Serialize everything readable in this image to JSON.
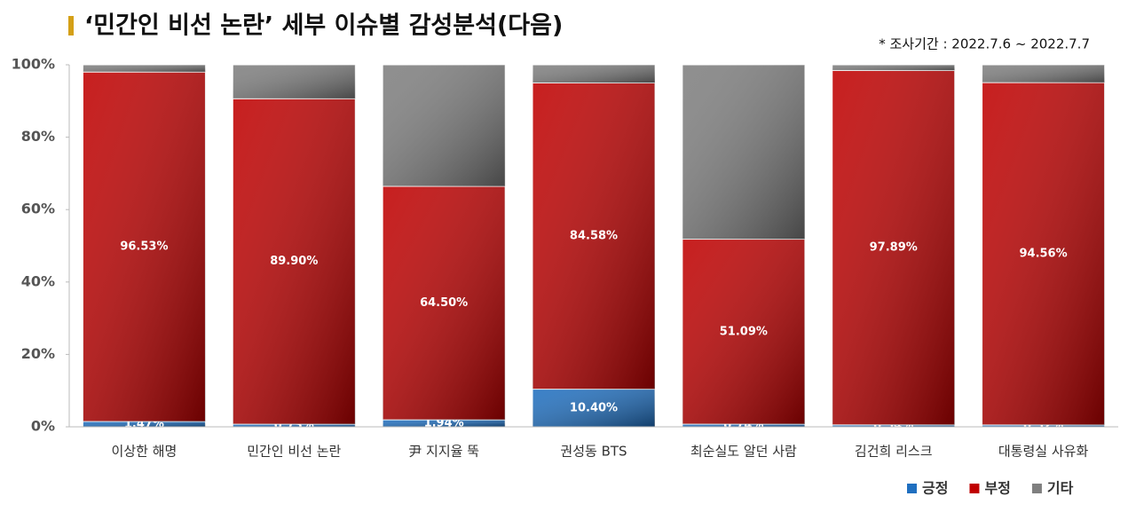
{
  "chart_data": {
    "type": "stacked_bar",
    "title": "‘민간인 비선 논란’ 세부 이슈별 감성분석(다음)",
    "subtitle": "* 조사기간 : 2022.7.6 ~ 2022.7.7",
    "categories": [
      "이상한 해명",
      "민간인 비선 논란",
      "尹 지지율 뚝",
      "권성동 BTS",
      "최순실도 알던 사람",
      "김건희 리스크",
      "대통령실 사유화"
    ],
    "series": [
      {
        "name": "긍정",
        "color": "#1f6fc0",
        "values": [
          1.47,
          0.73,
          1.94,
          10.4,
          0.74,
          0.54,
          0.52
        ],
        "value_labels": [
          "1.47%",
          "0.73%",
          "1.94%",
          "10.40%",
          "0.74%",
          "0.54%",
          "0.52%"
        ]
      },
      {
        "name": "부정",
        "color": "#c00000",
        "values": [
          96.53,
          89.9,
          64.5,
          84.58,
          51.09,
          97.89,
          94.56
        ],
        "value_labels": [
          "96.53%",
          "89.90%",
          "64.50%",
          "84.58%",
          "51.09%",
          "97.89%",
          "94.56%"
        ]
      },
      {
        "name": "기타",
        "color": "#7f7f7f",
        "values": [
          2.0,
          9.37,
          33.56,
          5.02,
          48.17,
          1.57,
          4.92
        ]
      }
    ],
    "ylim": [
      0,
      100
    ],
    "yticks": [
      {
        "value": 0,
        "label": "0%"
      },
      {
        "value": 20,
        "label": "20%"
      },
      {
        "value": 40,
        "label": "40%"
      },
      {
        "value": 60,
        "label": "60%"
      },
      {
        "value": 80,
        "label": "80%"
      },
      {
        "value": 100,
        "label": "100%"
      }
    ],
    "legend": "bottom-right"
  }
}
